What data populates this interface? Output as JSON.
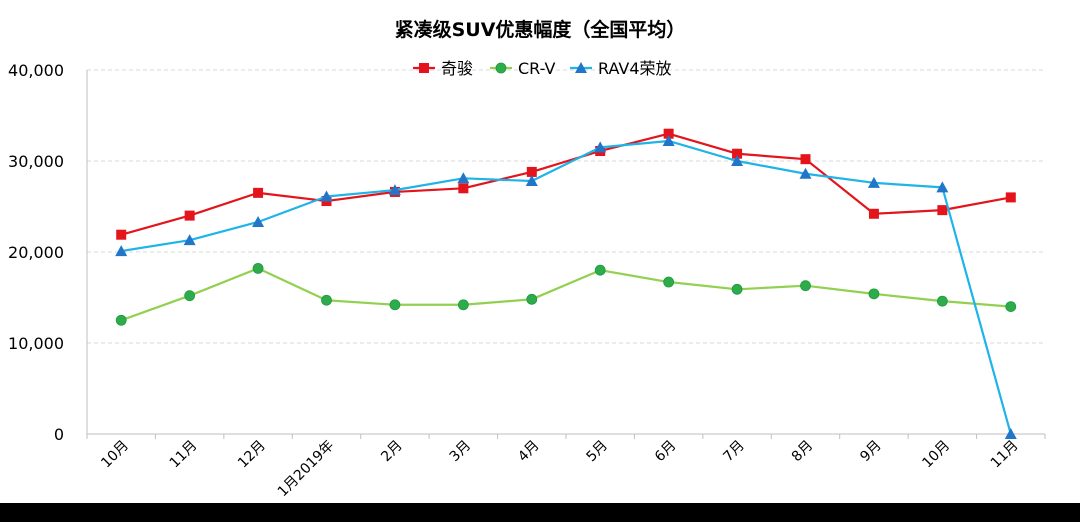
{
  "chart_data": {
    "type": "line",
    "title": "紧凑级SUV优惠幅度（全国平均）",
    "xlabel": "",
    "ylabel": "",
    "categories": [
      "10月",
      "11月",
      "12月",
      "1月2019年",
      "2月",
      "3月",
      "4月",
      "5月",
      "6月",
      "7月",
      "8月",
      "9月",
      "10月",
      "11月"
    ],
    "y_ticks": [
      "0",
      "10,000",
      "20,000",
      "30,000",
      "40,000"
    ],
    "ylim": [
      0,
      40000
    ],
    "grid": true,
    "legend_position": "top-center",
    "series": [
      {
        "name": "奇骏",
        "color": "#e3141b",
        "marker": "square",
        "values": [
          21900,
          24000,
          26500,
          25600,
          26600,
          27000,
          28800,
          31100,
          33000,
          30800,
          30200,
          24200,
          24600,
          26000
        ]
      },
      {
        "name": "CR-V",
        "color": "#92d050",
        "marker_color": "#2eab4a",
        "marker": "circle",
        "values": [
          12500,
          15200,
          18200,
          14700,
          14200,
          14200,
          14800,
          18000,
          16700,
          15900,
          16300,
          15400,
          14600,
          14000
        ]
      },
      {
        "name": "RAV4荣放",
        "color": "#1eb4e8",
        "marker_color": "#2176c9",
        "marker": "triangle",
        "values": [
          20100,
          21300,
          23300,
          26100,
          26800,
          28100,
          27800,
          31500,
          32200,
          30000,
          28600,
          27600,
          27100,
          0
        ]
      }
    ]
  }
}
